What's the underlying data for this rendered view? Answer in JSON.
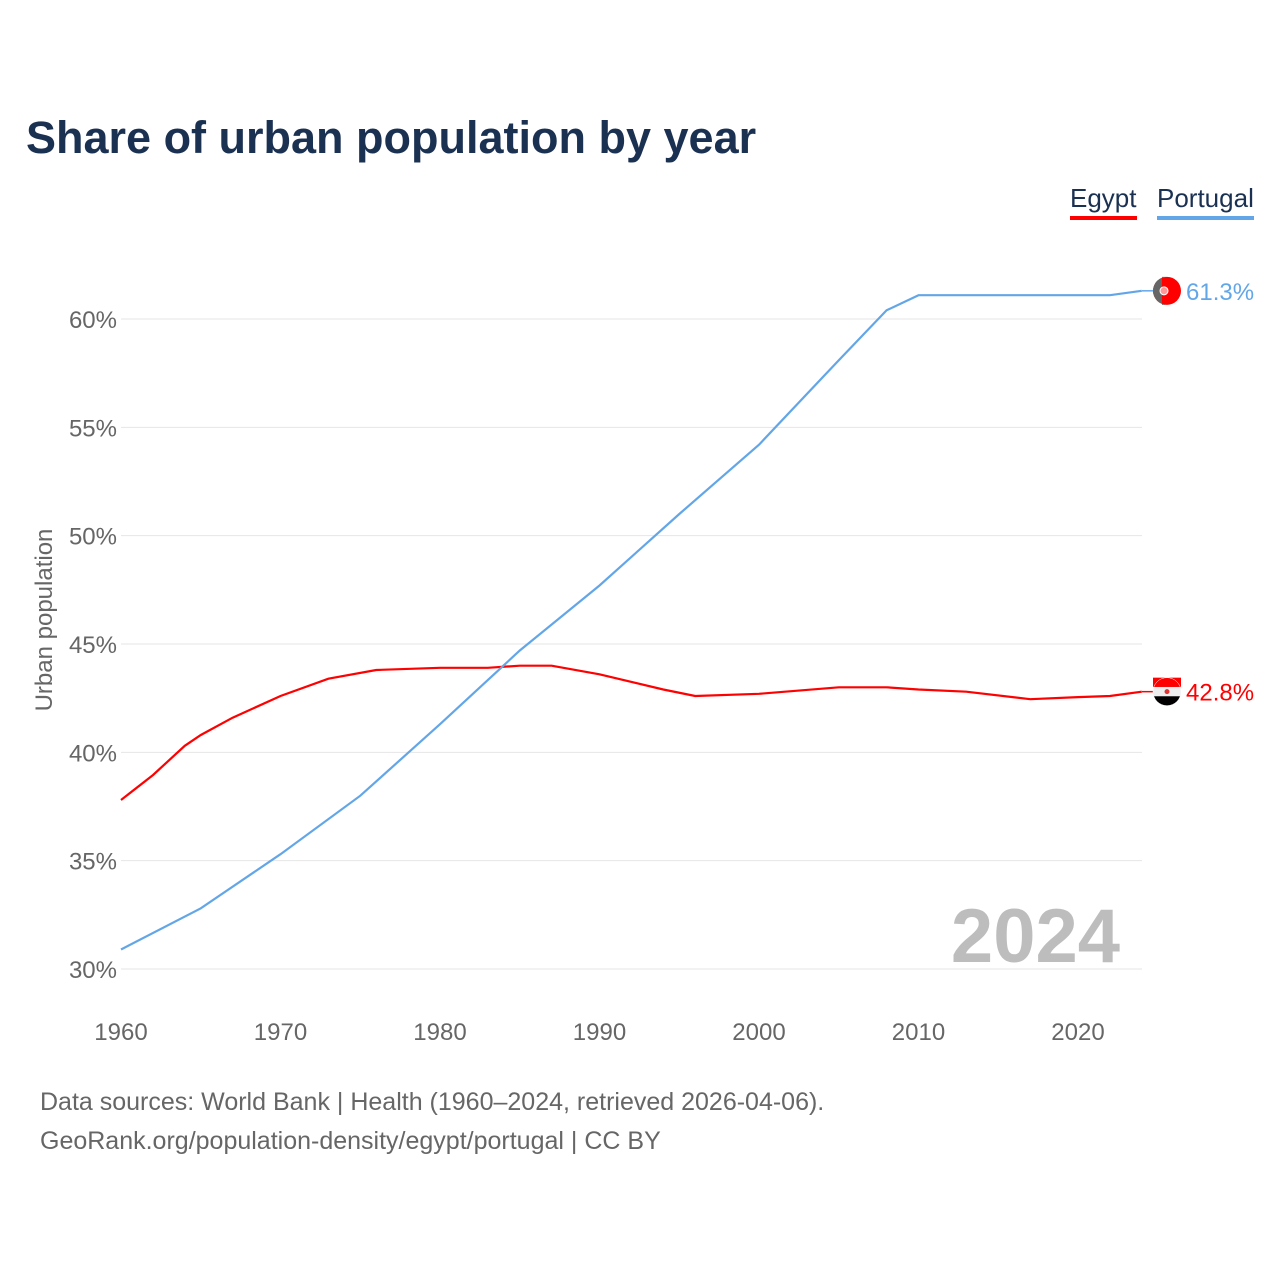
{
  "title": "Share of urban population by year",
  "footer": {
    "line1": "Data sources: World Bank | Health (1960–2024, retrieved 2026-04-06).",
    "line2": "GeoRank.org/population-density/egypt/portugal | CC BY"
  },
  "chart_data": {
    "type": "line",
    "title": "Share of urban population by year",
    "xlabel": "",
    "ylabel": "Urban population",
    "xlim": [
      1960,
      2024
    ],
    "ylim": [
      30,
      62
    ],
    "xticks": [
      "1960",
      "1970",
      "1980",
      "1990",
      "2000",
      "2010",
      "2020"
    ],
    "yticks": [
      {
        "value": 30,
        "label": "30%"
      },
      {
        "value": 35,
        "label": "35%"
      },
      {
        "value": 40,
        "label": "40%"
      },
      {
        "value": 45,
        "label": "45%"
      },
      {
        "value": 50,
        "label": "50%"
      },
      {
        "value": 55,
        "label": "55%"
      },
      {
        "value": 60,
        "label": "60%"
      }
    ],
    "grid": true,
    "legend_position": "top-right",
    "year_watermark": "2024",
    "series": [
      {
        "name": "Egypt",
        "color": "#ff0000",
        "end_label": "42.8%",
        "x": [
          1960,
          1962,
          1964,
          1965,
          1967,
          1970,
          1973,
          1976,
          1980,
          1983,
          1985,
          1987,
          1990,
          1994,
          1996,
          2000,
          2005,
          2008,
          2010,
          2013,
          2017,
          2020,
          2022,
          2024
        ],
        "y": [
          37.8,
          38.95,
          40.3,
          40.8,
          41.6,
          42.6,
          43.4,
          43.8,
          43.9,
          43.9,
          44.0,
          44.0,
          43.6,
          42.9,
          42.6,
          42.7,
          43.0,
          43.0,
          42.9,
          42.8,
          42.45,
          42.55,
          42.6,
          42.8
        ]
      },
      {
        "name": "Portugal",
        "color": "#63a6e8",
        "end_label": "61.3%",
        "x": [
          1960,
          1965,
          1970,
          1975,
          1980,
          1985,
          1990,
          1995,
          2000,
          2005,
          2008,
          2010,
          2022,
          2024
        ],
        "y": [
          30.9,
          32.8,
          35.3,
          38.0,
          41.3,
          44.7,
          47.7,
          51.0,
          54.2,
          58.1,
          60.4,
          61.1,
          61.1,
          61.3
        ]
      }
    ]
  }
}
